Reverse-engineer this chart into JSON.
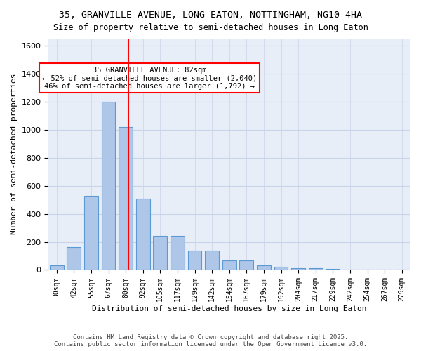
{
  "title1": "35, GRANVILLE AVENUE, LONG EATON, NOTTINGHAM, NG10 4HA",
  "title2": "Size of property relative to semi-detached houses in Long Eaton",
  "xlabel": "Distribution of semi-detached houses by size in Long Eaton",
  "ylabel": "Number of semi-detached properties",
  "categories": [
    "30sqm",
    "42sqm",
    "55sqm",
    "67sqm",
    "80sqm",
    "92sqm",
    "105sqm",
    "117sqm",
    "129sqm",
    "142sqm",
    "154sqm",
    "167sqm",
    "179sqm",
    "192sqm",
    "204sqm",
    "217sqm",
    "229sqm",
    "242sqm",
    "254sqm",
    "267sqm",
    "279sqm"
  ],
  "values": [
    30,
    165,
    530,
    1200,
    1020,
    510,
    245,
    245,
    140,
    140,
    65,
    65,
    30,
    20,
    10,
    10,
    5,
    2,
    1,
    1,
    0
  ],
  "bar_color": "#aec6e8",
  "bar_edge_color": "#5b9bd5",
  "grid_color": "#c8d4e8",
  "bg_color": "#e8eef8",
  "red_line_x": 4.5,
  "property_sqm": 82,
  "annotation_text1": "35 GRANVILLE AVENUE: 82sqm",
  "annotation_text2": "← 52% of semi-detached houses are smaller (2,040)",
  "annotation_text3": "46% of semi-detached houses are larger (1,792) →",
  "footer1": "Contains HM Land Registry data © Crown copyright and database right 2025.",
  "footer2": "Contains public sector information licensed under the Open Government Licence v3.0.",
  "ylim": [
    0,
    1650
  ],
  "yticks": [
    0,
    200,
    400,
    600,
    800,
    1000,
    1200,
    1400,
    1600
  ]
}
